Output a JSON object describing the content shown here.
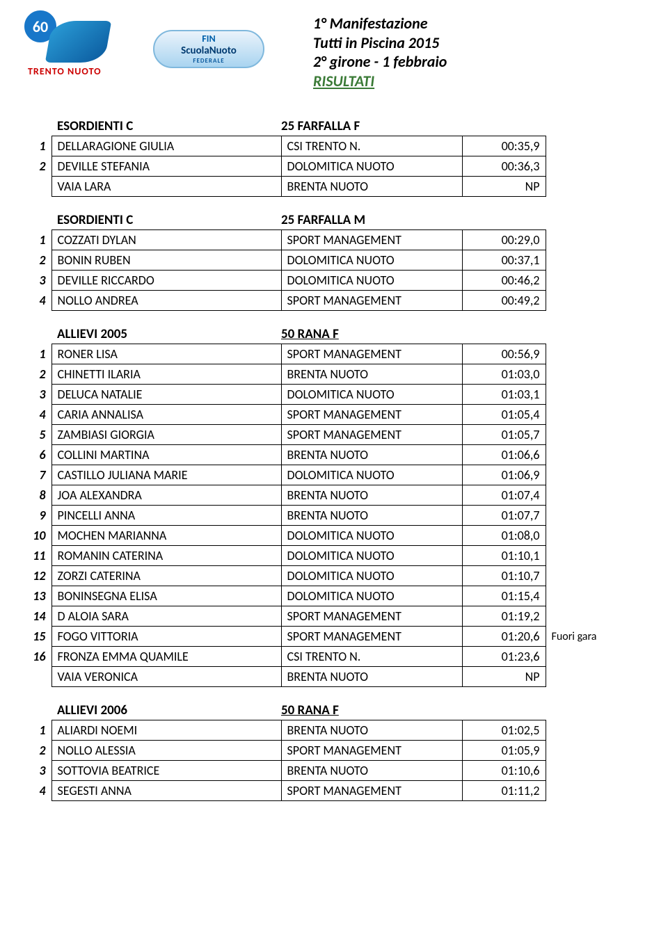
{
  "header": {
    "line1": "1° Manifestazione",
    "line2": "Tutti in Piscina 2015",
    "line3": "2° girone - 1 febbraio",
    "line4": "RISULTATI",
    "logo1_badge": "60",
    "logo1_label": "TRENTO NUOTO",
    "logo2_top": "FIN",
    "logo2_mid": "ScuolaNuoto",
    "logo2_bot": "FEDERALE"
  },
  "sections": [
    {
      "category": "ESORDIENTI C",
      "event": "25 FARFALLA F",
      "underline_event": false,
      "rows": [
        {
          "rank": "1",
          "name": "DELLARAGIONE GIULIA",
          "team": "CSI TRENTO N.",
          "time": "00:35,9",
          "note": ""
        },
        {
          "rank": "2",
          "name": "DEVILLE STEFANIA",
          "team": "DOLOMITICA NUOTO",
          "time": "00:36,3",
          "note": ""
        },
        {
          "rank": "",
          "name": "VAIA LARA",
          "team": "BRENTA NUOTO",
          "time": "NP",
          "note": ""
        }
      ]
    },
    {
      "category": "ESORDIENTI C",
      "event": "25 FARFALLA M",
      "underline_event": false,
      "rows": [
        {
          "rank": "1",
          "name": "COZZATI DYLAN",
          "team": "SPORT MANAGEMENT",
          "time": "00:29,0",
          "note": ""
        },
        {
          "rank": "2",
          "name": "BONIN RUBEN",
          "team": "DOLOMITICA NUOTO",
          "time": "00:37,1",
          "note": ""
        },
        {
          "rank": "3",
          "name": "DEVILLE RICCARDO",
          "team": "DOLOMITICA NUOTO",
          "time": "00:46,2",
          "note": ""
        },
        {
          "rank": "4",
          "name": "NOLLO ANDREA",
          "team": "SPORT MANAGEMENT",
          "time": "00:49,2",
          "note": ""
        }
      ]
    },
    {
      "category": "ALLIEVI 2005",
      "event": "50 RANA F",
      "underline_event": true,
      "rows": [
        {
          "rank": "1",
          "name": "RONER LISA",
          "team": "SPORT MANAGEMENT",
          "time": "00:56,9",
          "note": ""
        },
        {
          "rank": "2",
          "name": "CHINETTI ILARIA",
          "team": "BRENTA NUOTO",
          "time": "01:03,0",
          "note": ""
        },
        {
          "rank": "3",
          "name": "DELUCA NATALIE",
          "team": "DOLOMITICA NUOTO",
          "time": "01:03,1",
          "note": ""
        },
        {
          "rank": "4",
          "name": "CARIA ANNALISA",
          "team": "SPORT MANAGEMENT",
          "time": "01:05,4",
          "note": ""
        },
        {
          "rank": "5",
          "name": "ZAMBIASI GIORGIA",
          "team": "SPORT MANAGEMENT",
          "time": "01:05,7",
          "note": ""
        },
        {
          "rank": "6",
          "name": "COLLINI MARTINA",
          "team": "BRENTA NUOTO",
          "time": "01:06,6",
          "note": ""
        },
        {
          "rank": "7",
          "name": "CASTILLO JULIANA MARIE",
          "team": "DOLOMITICA NUOTO",
          "time": "01:06,9",
          "note": ""
        },
        {
          "rank": "8",
          "name": "JOA ALEXANDRA",
          "team": "BRENTA NUOTO",
          "time": "01:07,4",
          "note": ""
        },
        {
          "rank": "9",
          "name": "PINCELLI ANNA",
          "team": "BRENTA NUOTO",
          "time": "01:07,7",
          "note": ""
        },
        {
          "rank": "10",
          "name": "MOCHEN MARIANNA",
          "team": "DOLOMITICA NUOTO",
          "time": "01:08,0",
          "note": ""
        },
        {
          "rank": "11",
          "name": "ROMANIN CATERINA",
          "team": "DOLOMITICA NUOTO",
          "time": "01:10,1",
          "note": ""
        },
        {
          "rank": "12",
          "name": "ZORZI CATERINA",
          "team": "DOLOMITICA NUOTO",
          "time": "01:10,7",
          "note": ""
        },
        {
          "rank": "13",
          "name": "BONINSEGNA ELISA",
          "team": "DOLOMITICA NUOTO",
          "time": "01:15,4",
          "note": ""
        },
        {
          "rank": "14",
          "name": "D ALOIA SARA",
          "team": "SPORT MANAGEMENT",
          "time": "01:19,2",
          "note": ""
        },
        {
          "rank": "15",
          "name": "FOGO VITTORIA",
          "team": "SPORT MANAGEMENT",
          "time": "01:20,6",
          "note": "Fuori gara"
        },
        {
          "rank": "16",
          "name": "FRONZA EMMA QUAMILE",
          "team": "CSI TRENTO N.",
          "time": "01:23,6",
          "note": ""
        },
        {
          "rank": "",
          "name": "VAIA VERONICA",
          "team": "BRENTA NUOTO",
          "time": "NP",
          "note": ""
        }
      ]
    },
    {
      "category": "ALLIEVI 2006",
      "event": "50 RANA F",
      "underline_event": true,
      "rows": [
        {
          "rank": "1",
          "name": "ALIARDI NOEMI",
          "team": "BRENTA NUOTO",
          "time": "01:02,5",
          "note": ""
        },
        {
          "rank": "2",
          "name": "NOLLO ALESSIA",
          "team": "SPORT MANAGEMENT",
          "time": "01:05,9",
          "note": ""
        },
        {
          "rank": "3",
          "name": "SOTTOVIA BEATRICE",
          "team": "BRENTA NUOTO",
          "time": "01:10,6",
          "note": ""
        },
        {
          "rank": "4",
          "name": "SEGESTI ANNA",
          "team": "SPORT MANAGEMENT",
          "time": "01:11,2",
          "note": ""
        }
      ]
    }
  ]
}
